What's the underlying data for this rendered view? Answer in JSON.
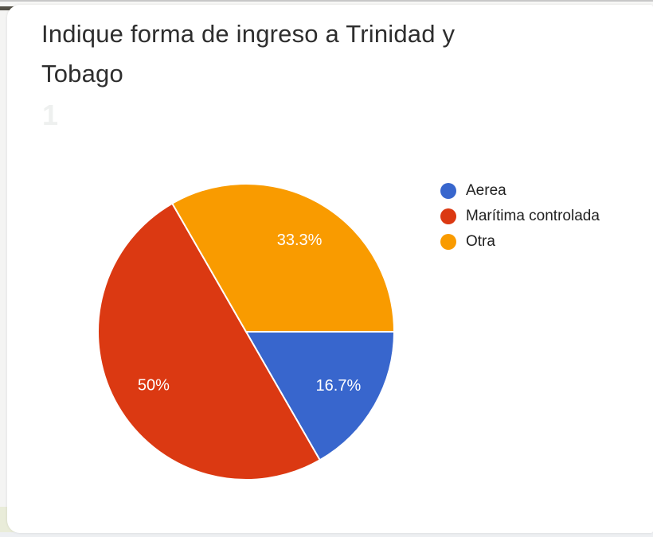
{
  "card": {
    "title": "Indique forma de ingreso a Trinidad y Tobago",
    "faint_mark": "1"
  },
  "chart_data": {
    "type": "pie",
    "title": "Indique forma de ingreso a Trinidad y Tobago",
    "slices": [
      {
        "name": "Aerea",
        "value_percent": 16.7,
        "label": "16.7%",
        "color": "#3866cd"
      },
      {
        "name": "Marítima controlada",
        "value_percent": 50,
        "label": "50%",
        "color": "#db3912"
      },
      {
        "name": "Otra",
        "value_percent": 33.3,
        "label": "33.3%",
        "color": "#f99b00"
      }
    ],
    "legend_position": "right",
    "start_angle_deg": 0,
    "direction": "clockwise",
    "slice_label_color": "#ffffff",
    "separator_color": "#ffffff"
  }
}
